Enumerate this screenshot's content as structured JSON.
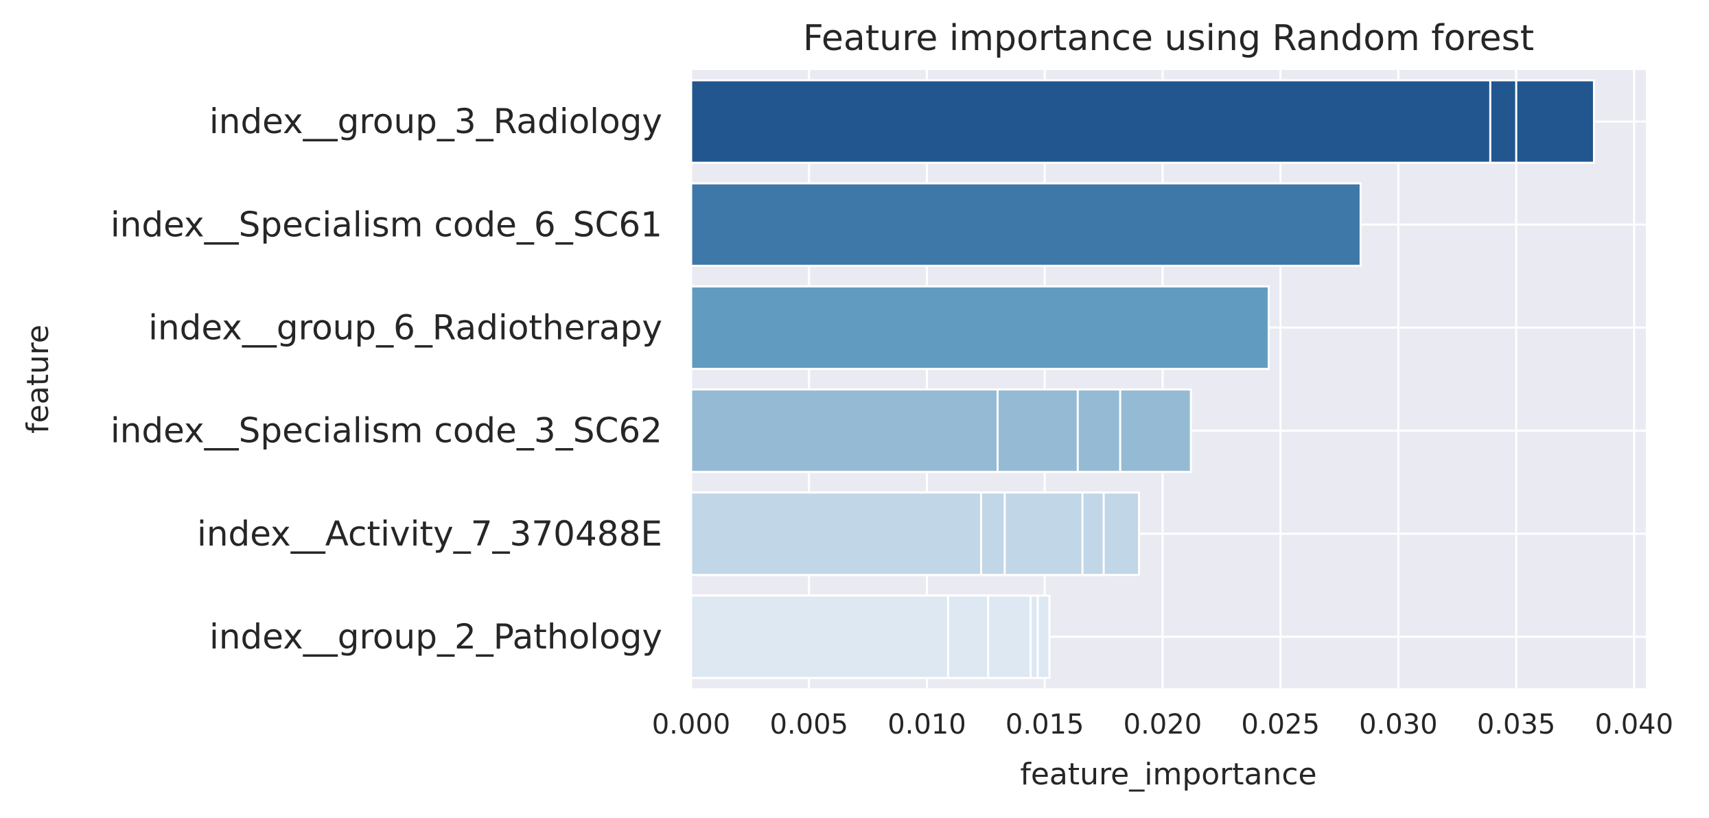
{
  "chart_data": {
    "type": "bar",
    "orientation": "horizontal",
    "title": "Feature importance using Random forest",
    "xlabel": "feature_importance",
    "ylabel": "feature",
    "xlim": [
      0,
      0.0405
    ],
    "xticks": [
      "0.000",
      "0.005",
      "0.010",
      "0.015",
      "0.020",
      "0.025",
      "0.030",
      "0.035",
      "0.040"
    ],
    "grid": true,
    "palette": "Blues",
    "categories": [
      "index__group_3_Radiology",
      "index__Specialism code_6_SC61",
      "index__group_6_Radiotherapy",
      "index__Specialism code_3_SC62",
      "index__Activity_7_370488E",
      "index__group_2_Pathology"
    ],
    "colors": [
      "#22568e",
      "#3d78a8",
      "#629bc0",
      "#94bbd3",
      "#c1d6e6",
      "#dde8f3"
    ],
    "bars": [
      {
        "category": "index__group_3_Radiology",
        "segment_ends": [
          0.0339,
          0.035,
          0.0383
        ]
      },
      {
        "category": "index__Specialism code_6_SC61",
        "segment_ends": [
          0.0284
        ]
      },
      {
        "category": "index__group_6_Radiotherapy",
        "segment_ends": [
          0.0245
        ]
      },
      {
        "category": "index__Specialism code_3_SC62",
        "segment_ends": [
          0.013,
          0.0164,
          0.0182,
          0.0212
        ]
      },
      {
        "category": "index__Activity_7_370488E",
        "segment_ends": [
          0.0123,
          0.0133,
          0.0166,
          0.0175,
          0.019
        ]
      },
      {
        "category": "index__group_2_Pathology",
        "segment_ends": [
          0.0109,
          0.0126,
          0.0144,
          0.0147,
          0.0152
        ]
      }
    ]
  },
  "style": {
    "plot_background": "#eaeaf2",
    "grid_color": "#ffffff",
    "text_color": "#262626"
  }
}
